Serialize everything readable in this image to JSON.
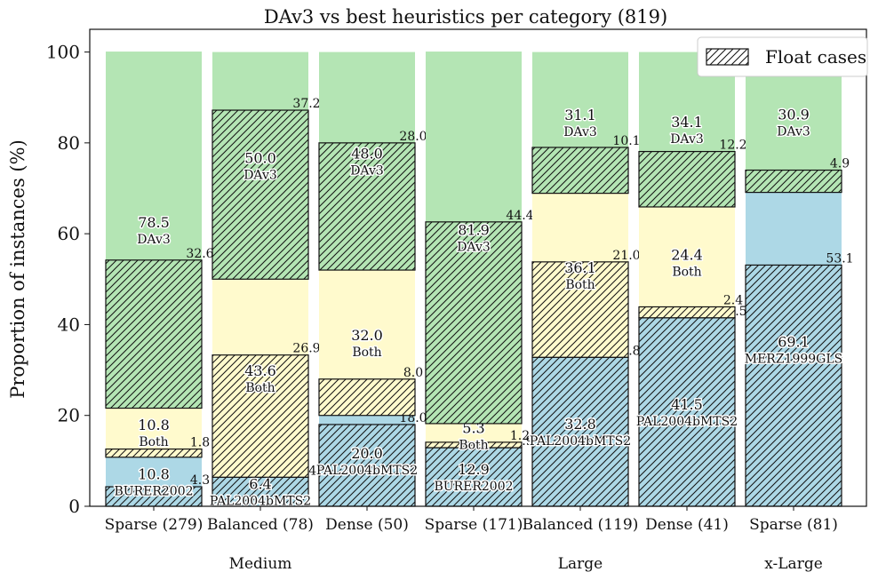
{
  "chart_data": {
    "type": "bar",
    "stacked": true,
    "title": "DAv3 vs best heuristics per category (819)",
    "ylabel": "Proportion of instances (%)",
    "xlabel": "",
    "ylim": [
      0,
      105
    ],
    "yticks": [
      "0",
      "20",
      "40",
      "60",
      "80",
      "100"
    ],
    "grid": false,
    "legend": {
      "placement": "top-right",
      "entries": [
        {
          "label": "Float cases",
          "pattern": "hatched"
        }
      ]
    },
    "colors": {
      "heuristic": "#add8e6",
      "both": "#fffacd",
      "dav3": "#b4e5b4",
      "edge": "#111111"
    },
    "groups": [
      {
        "label": "Medium",
        "span": [
          0,
          2
        ]
      },
      {
        "label": "Large",
        "span": [
          3,
          5
        ]
      },
      {
        "label": "x-Large",
        "span": [
          6,
          6
        ]
      }
    ],
    "categories": [
      "Sparse (279)",
      "Balanced (78)",
      "Dense (50)",
      "Sparse (171)",
      "Balanced (119)",
      "Dense (41)",
      "Sparse (81)"
    ],
    "bars": [
      {
        "heuristic": {
          "pct": 10.8,
          "float": 4.3,
          "name": "BURER2002",
          "pct_label": "10.8",
          "float_label": "4.3"
        },
        "both": {
          "pct": 10.8,
          "float": 1.8,
          "name": "Both",
          "pct_label": "10.8",
          "float_label": "1.8"
        },
        "dav3": {
          "pct": 78.5,
          "float": 32.6,
          "name": "DAv3",
          "pct_label": "78.5",
          "float_label": "32.6"
        }
      },
      {
        "heuristic": {
          "pct": 6.4,
          "float": 6.4,
          "name": "PAL2004bMTS2",
          "pct_label": "6.4",
          "float_label": "6.4"
        },
        "both": {
          "pct": 43.6,
          "float": 26.9,
          "name": "Both",
          "pct_label": "43.6",
          "float_label": "26.9"
        },
        "dav3": {
          "pct": 50.0,
          "float": 37.2,
          "name": "DAv3",
          "pct_label": "50.0",
          "float_label": "37.2"
        }
      },
      {
        "heuristic": {
          "pct": 20.0,
          "float": 18.0,
          "name": "PAL2004bMTS2",
          "pct_label": "20.0",
          "float_label": "18.0"
        },
        "both": {
          "pct": 32.0,
          "float": 8.0,
          "name": "Both",
          "pct_label": "32.0",
          "float_label": "8.0"
        },
        "dav3": {
          "pct": 48.0,
          "float": 28.0,
          "name": "DAv3",
          "pct_label": "48.0",
          "float_label": "28.0"
        }
      },
      {
        "heuristic": {
          "pct": 12.9,
          "float": 12.9,
          "name": "BURER2002",
          "pct_label": "12.9",
          "float_label": "12.9"
        },
        "both": {
          "pct": 5.3,
          "float": 1.2,
          "name": "Both",
          "pct_label": "5.3",
          "float_label": "1.2"
        },
        "dav3": {
          "pct": 81.9,
          "float": 44.4,
          "name": "DAv3",
          "pct_label": "81.9",
          "float_label": "44.4"
        }
      },
      {
        "heuristic": {
          "pct": 32.8,
          "float": 32.8,
          "name": "PAL2004bMTS2",
          "pct_label": "32.8",
          "float_label": "32.8"
        },
        "both": {
          "pct": 36.1,
          "float": 21.0,
          "name": "Both",
          "pct_label": "36.1",
          "float_label": "21.0"
        },
        "dav3": {
          "pct": 31.1,
          "float": 10.1,
          "name": "DAv3",
          "pct_label": "31.1",
          "float_label": "10.1"
        }
      },
      {
        "heuristic": {
          "pct": 41.5,
          "float": 41.5,
          "name": "PAL2004bMTS2",
          "pct_label": "41.5",
          "float_label": "41.5"
        },
        "both": {
          "pct": 24.4,
          "float": 2.4,
          "name": "Both",
          "pct_label": "24.4",
          "float_label": "2.4"
        },
        "dav3": {
          "pct": 34.1,
          "float": 12.2,
          "name": "DAv3",
          "pct_label": "34.1",
          "float_label": "12.2"
        }
      },
      {
        "heuristic": {
          "pct": 69.1,
          "float": 53.1,
          "name": "MERZ1999GLS",
          "pct_label": "69.1",
          "float_label": "53.1"
        },
        "both": {
          "pct": 0.0,
          "float": 0.0,
          "name": "",
          "pct_label": "",
          "float_label": ""
        },
        "dav3": {
          "pct": 30.9,
          "float": 4.9,
          "name": "DAv3",
          "pct_label": "30.9",
          "float_label": "4.9"
        }
      }
    ]
  }
}
